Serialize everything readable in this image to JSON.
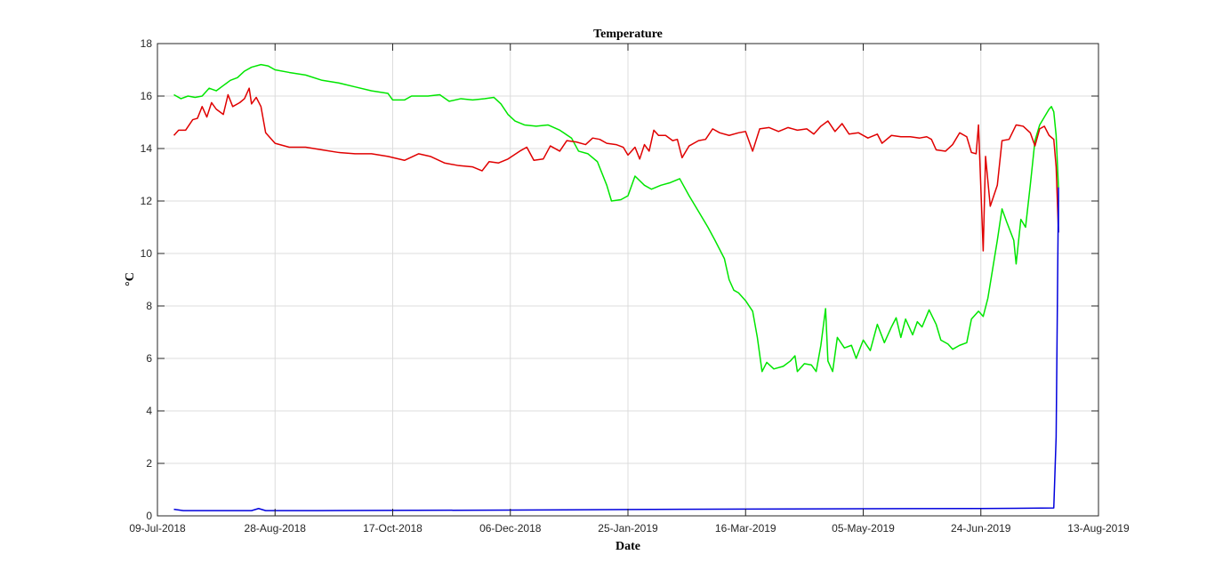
{
  "chart_data": {
    "type": "line",
    "title": "Temperature",
    "xlabel": "Date",
    "ylabel": "°C",
    "ylim": [
      0,
      18
    ],
    "xlim": [
      "2018-07-09",
      "2019-08-13"
    ],
    "y_ticks": [
      0,
      2,
      4,
      6,
      8,
      10,
      12,
      14,
      16,
      18
    ],
    "x_ticks": [
      {
        "date": "2018-07-09",
        "label": "09-Jul-2018"
      },
      {
        "date": "2018-08-28",
        "label": "28-Aug-2018"
      },
      {
        "date": "2018-10-17",
        "label": "17-Oct-2018"
      },
      {
        "date": "2018-12-06",
        "label": "06-Dec-2018"
      },
      {
        "date": "2019-01-25",
        "label": "25-Jan-2019"
      },
      {
        "date": "2019-03-16",
        "label": "16-Mar-2019"
      },
      {
        "date": "2019-05-05",
        "label": "05-May-2019"
      },
      {
        "date": "2019-06-24",
        "label": "24-Jun-2019"
      },
      {
        "date": "2019-08-13",
        "label": "13-Aug-2019"
      }
    ],
    "grid": true,
    "series": [
      {
        "color": "#00e600",
        "points": [
          [
            "2018-07-16",
            16.05
          ],
          [
            "2018-07-19",
            15.9
          ],
          [
            "2018-07-22",
            16.0
          ],
          [
            "2018-07-25",
            15.95
          ],
          [
            "2018-07-28",
            16.0
          ],
          [
            "2018-07-31",
            16.3
          ],
          [
            "2018-08-03",
            16.2
          ],
          [
            "2018-08-06",
            16.4
          ],
          [
            "2018-08-09",
            16.6
          ],
          [
            "2018-08-12",
            16.7
          ],
          [
            "2018-08-15",
            16.95
          ],
          [
            "2018-08-18",
            17.1
          ],
          [
            "2018-08-22",
            17.2
          ],
          [
            "2018-08-25",
            17.15
          ],
          [
            "2018-08-28",
            17.0
          ],
          [
            "2018-09-03",
            16.9
          ],
          [
            "2018-09-10",
            16.8
          ],
          [
            "2018-09-17",
            16.6
          ],
          [
            "2018-09-24",
            16.5
          ],
          [
            "2018-10-01",
            16.35
          ],
          [
            "2018-10-08",
            16.2
          ],
          [
            "2018-10-15",
            16.1
          ],
          [
            "2018-10-17",
            15.85
          ],
          [
            "2018-10-22",
            15.85
          ],
          [
            "2018-10-25",
            16.0
          ],
          [
            "2018-11-01",
            16.0
          ],
          [
            "2018-11-06",
            16.05
          ],
          [
            "2018-11-10",
            15.8
          ],
          [
            "2018-11-15",
            15.9
          ],
          [
            "2018-11-20",
            15.85
          ],
          [
            "2018-11-25",
            15.9
          ],
          [
            "2018-11-29",
            15.95
          ],
          [
            "2018-12-02",
            15.7
          ],
          [
            "2018-12-05",
            15.3
          ],
          [
            "2018-12-08",
            15.05
          ],
          [
            "2018-12-12",
            14.9
          ],
          [
            "2018-12-17",
            14.85
          ],
          [
            "2018-12-22",
            14.9
          ],
          [
            "2018-12-27",
            14.7
          ],
          [
            "2019-01-01",
            14.4
          ],
          [
            "2019-01-04",
            13.9
          ],
          [
            "2019-01-08",
            13.8
          ],
          [
            "2019-01-12",
            13.5
          ],
          [
            "2019-01-16",
            12.6
          ],
          [
            "2019-01-18",
            12.0
          ],
          [
            "2019-01-22",
            12.05
          ],
          [
            "2019-01-25",
            12.2
          ],
          [
            "2019-01-28",
            12.95
          ],
          [
            "2019-02-01",
            12.6
          ],
          [
            "2019-02-04",
            12.45
          ],
          [
            "2019-02-08",
            12.6
          ],
          [
            "2019-02-12",
            12.7
          ],
          [
            "2019-02-16",
            12.85
          ],
          [
            "2019-02-20",
            12.2
          ],
          [
            "2019-02-24",
            11.6
          ],
          [
            "2019-02-28",
            11.0
          ],
          [
            "2019-03-03",
            10.5
          ],
          [
            "2019-03-07",
            9.8
          ],
          [
            "2019-03-09",
            9.0
          ],
          [
            "2019-03-11",
            8.6
          ],
          [
            "2019-03-13",
            8.5
          ],
          [
            "2019-03-16",
            8.2
          ],
          [
            "2019-03-19",
            7.8
          ],
          [
            "2019-03-21",
            6.8
          ],
          [
            "2019-03-23",
            5.5
          ],
          [
            "2019-03-25",
            5.85
          ],
          [
            "2019-03-28",
            5.6
          ],
          [
            "2019-04-01",
            5.7
          ],
          [
            "2019-04-04",
            5.9
          ],
          [
            "2019-04-06",
            6.1
          ],
          [
            "2019-04-07",
            5.5
          ],
          [
            "2019-04-10",
            5.8
          ],
          [
            "2019-04-13",
            5.75
          ],
          [
            "2019-04-15",
            5.5
          ],
          [
            "2019-04-17",
            6.5
          ],
          [
            "2019-04-19",
            7.9
          ],
          [
            "2019-04-20",
            5.9
          ],
          [
            "2019-04-22",
            5.5
          ],
          [
            "2019-04-24",
            6.8
          ],
          [
            "2019-04-27",
            6.4
          ],
          [
            "2019-04-30",
            6.5
          ],
          [
            "2019-05-02",
            6.0
          ],
          [
            "2019-05-05",
            6.7
          ],
          [
            "2019-05-08",
            6.3
          ],
          [
            "2019-05-11",
            7.3
          ],
          [
            "2019-05-14",
            6.6
          ],
          [
            "2019-05-17",
            7.2
          ],
          [
            "2019-05-19",
            7.55
          ],
          [
            "2019-05-21",
            6.8
          ],
          [
            "2019-05-23",
            7.5
          ],
          [
            "2019-05-26",
            6.9
          ],
          [
            "2019-05-28",
            7.4
          ],
          [
            "2019-05-30",
            7.2
          ],
          [
            "2019-06-02",
            7.85
          ],
          [
            "2019-06-05",
            7.3
          ],
          [
            "2019-06-07",
            6.7
          ],
          [
            "2019-06-10",
            6.55
          ],
          [
            "2019-06-12",
            6.35
          ],
          [
            "2019-06-15",
            6.5
          ],
          [
            "2019-06-18",
            6.6
          ],
          [
            "2019-06-20",
            7.5
          ],
          [
            "2019-06-23",
            7.8
          ],
          [
            "2019-06-25",
            7.6
          ],
          [
            "2019-06-27",
            8.3
          ],
          [
            "2019-06-29",
            9.4
          ],
          [
            "2019-07-01",
            10.5
          ],
          [
            "2019-07-03",
            11.7
          ],
          [
            "2019-07-05",
            11.2
          ],
          [
            "2019-07-08",
            10.5
          ],
          [
            "2019-07-09",
            9.6
          ],
          [
            "2019-07-11",
            11.3
          ],
          [
            "2019-07-13",
            11.0
          ],
          [
            "2019-07-15",
            12.6
          ],
          [
            "2019-07-17",
            14.3
          ],
          [
            "2019-07-19",
            14.9
          ],
          [
            "2019-07-21",
            15.2
          ],
          [
            "2019-07-23",
            15.5
          ],
          [
            "2019-07-24",
            15.6
          ],
          [
            "2019-07-25",
            15.4
          ],
          [
            "2019-07-26",
            14.5
          ],
          [
            "2019-07-27",
            12.5
          ]
        ]
      },
      {
        "color": "#e00000",
        "points": [
          [
            "2018-07-16",
            14.5
          ],
          [
            "2018-07-18",
            14.7
          ],
          [
            "2018-07-21",
            14.7
          ],
          [
            "2018-07-24",
            15.1
          ],
          [
            "2018-07-26",
            15.15
          ],
          [
            "2018-07-28",
            15.6
          ],
          [
            "2018-07-30",
            15.2
          ],
          [
            "2018-08-01",
            15.75
          ],
          [
            "2018-08-03",
            15.5
          ],
          [
            "2018-08-06",
            15.3
          ],
          [
            "2018-08-08",
            16.05
          ],
          [
            "2018-08-10",
            15.6
          ],
          [
            "2018-08-13",
            15.75
          ],
          [
            "2018-08-15",
            15.9
          ],
          [
            "2018-08-17",
            16.3
          ],
          [
            "2018-08-18",
            15.7
          ],
          [
            "2018-08-20",
            15.95
          ],
          [
            "2018-08-22",
            15.6
          ],
          [
            "2018-08-24",
            14.6
          ],
          [
            "2018-08-28",
            14.2
          ],
          [
            "2018-09-03",
            14.05
          ],
          [
            "2018-09-10",
            14.05
          ],
          [
            "2018-09-17",
            13.95
          ],
          [
            "2018-09-24",
            13.85
          ],
          [
            "2018-10-01",
            13.8
          ],
          [
            "2018-10-08",
            13.8
          ],
          [
            "2018-10-15",
            13.7
          ],
          [
            "2018-10-22",
            13.55
          ],
          [
            "2018-10-28",
            13.8
          ],
          [
            "2018-11-02",
            13.7
          ],
          [
            "2018-11-08",
            13.45
          ],
          [
            "2018-11-14",
            13.35
          ],
          [
            "2018-11-20",
            13.3
          ],
          [
            "2018-11-24",
            13.15
          ],
          [
            "2018-11-27",
            13.5
          ],
          [
            "2018-12-01",
            13.45
          ],
          [
            "2018-12-05",
            13.6
          ],
          [
            "2018-12-10",
            13.9
          ],
          [
            "2018-12-13",
            14.05
          ],
          [
            "2018-12-16",
            13.55
          ],
          [
            "2018-12-20",
            13.6
          ],
          [
            "2018-12-23",
            14.1
          ],
          [
            "2018-12-27",
            13.9
          ],
          [
            "2018-12-30",
            14.3
          ],
          [
            "2019-01-03",
            14.25
          ],
          [
            "2019-01-07",
            14.15
          ],
          [
            "2019-01-10",
            14.4
          ],
          [
            "2019-01-13",
            14.35
          ],
          [
            "2019-01-16",
            14.2
          ],
          [
            "2019-01-20",
            14.15
          ],
          [
            "2019-01-23",
            14.05
          ],
          [
            "2019-01-25",
            13.75
          ],
          [
            "2019-01-28",
            14.05
          ],
          [
            "2019-01-30",
            13.6
          ],
          [
            "2019-02-01",
            14.15
          ],
          [
            "2019-02-03",
            13.9
          ],
          [
            "2019-02-05",
            14.7
          ],
          [
            "2019-02-07",
            14.5
          ],
          [
            "2019-02-10",
            14.5
          ],
          [
            "2019-02-13",
            14.3
          ],
          [
            "2019-02-15",
            14.35
          ],
          [
            "2019-02-17",
            13.65
          ],
          [
            "2019-02-20",
            14.1
          ],
          [
            "2019-02-24",
            14.3
          ],
          [
            "2019-02-27",
            14.35
          ],
          [
            "2019-03-02",
            14.75
          ],
          [
            "2019-03-05",
            14.6
          ],
          [
            "2019-03-09",
            14.5
          ],
          [
            "2019-03-13",
            14.6
          ],
          [
            "2019-03-16",
            14.65
          ],
          [
            "2019-03-19",
            13.9
          ],
          [
            "2019-03-22",
            14.75
          ],
          [
            "2019-03-26",
            14.8
          ],
          [
            "2019-03-30",
            14.65
          ],
          [
            "2019-04-03",
            14.8
          ],
          [
            "2019-04-07",
            14.7
          ],
          [
            "2019-04-11",
            14.75
          ],
          [
            "2019-04-14",
            14.55
          ],
          [
            "2019-04-17",
            14.85
          ],
          [
            "2019-04-20",
            15.05
          ],
          [
            "2019-04-23",
            14.65
          ],
          [
            "2019-04-26",
            14.95
          ],
          [
            "2019-04-29",
            14.55
          ],
          [
            "2019-05-03",
            14.6
          ],
          [
            "2019-05-07",
            14.4
          ],
          [
            "2019-05-11",
            14.55
          ],
          [
            "2019-05-13",
            14.2
          ],
          [
            "2019-05-17",
            14.5
          ],
          [
            "2019-05-21",
            14.45
          ],
          [
            "2019-05-25",
            14.45
          ],
          [
            "2019-05-29",
            14.4
          ],
          [
            "2019-06-01",
            14.45
          ],
          [
            "2019-06-03",
            14.35
          ],
          [
            "2019-06-05",
            13.95
          ],
          [
            "2019-06-09",
            13.9
          ],
          [
            "2019-06-12",
            14.15
          ],
          [
            "2019-06-15",
            14.6
          ],
          [
            "2019-06-18",
            14.45
          ],
          [
            "2019-06-20",
            13.85
          ],
          [
            "2019-06-22",
            13.8
          ],
          [
            "2019-06-23",
            14.9
          ],
          [
            "2019-06-25",
            10.1
          ],
          [
            "2019-06-26",
            13.7
          ],
          [
            "2019-06-28",
            11.8
          ],
          [
            "2019-07-01",
            12.6
          ],
          [
            "2019-07-03",
            14.3
          ],
          [
            "2019-07-06",
            14.35
          ],
          [
            "2019-07-09",
            14.9
          ],
          [
            "2019-07-12",
            14.85
          ],
          [
            "2019-07-15",
            14.6
          ],
          [
            "2019-07-17",
            14.1
          ],
          [
            "2019-07-19",
            14.75
          ],
          [
            "2019-07-21",
            14.85
          ],
          [
            "2019-07-23",
            14.5
          ],
          [
            "2019-07-25",
            14.35
          ],
          [
            "2019-07-26",
            13.3
          ],
          [
            "2019-07-27",
            10.8
          ]
        ]
      },
      {
        "color": "#0000dd",
        "points": [
          [
            "2018-07-16",
            0.25
          ],
          [
            "2018-07-20",
            0.2
          ],
          [
            "2018-08-18",
            0.2
          ],
          [
            "2018-08-21",
            0.28
          ],
          [
            "2018-08-24",
            0.2
          ],
          [
            "2018-09-15",
            0.2
          ],
          [
            "2018-12-06",
            0.22
          ],
          [
            "2019-01-25",
            0.24
          ],
          [
            "2019-03-16",
            0.26
          ],
          [
            "2019-05-05",
            0.27
          ],
          [
            "2019-06-24",
            0.28
          ],
          [
            "2019-07-25",
            0.3
          ],
          [
            "2019-07-26",
            3.0
          ],
          [
            "2019-07-27",
            12.5
          ],
          [
            "2019-07-27",
            10.8
          ]
        ]
      }
    ]
  }
}
